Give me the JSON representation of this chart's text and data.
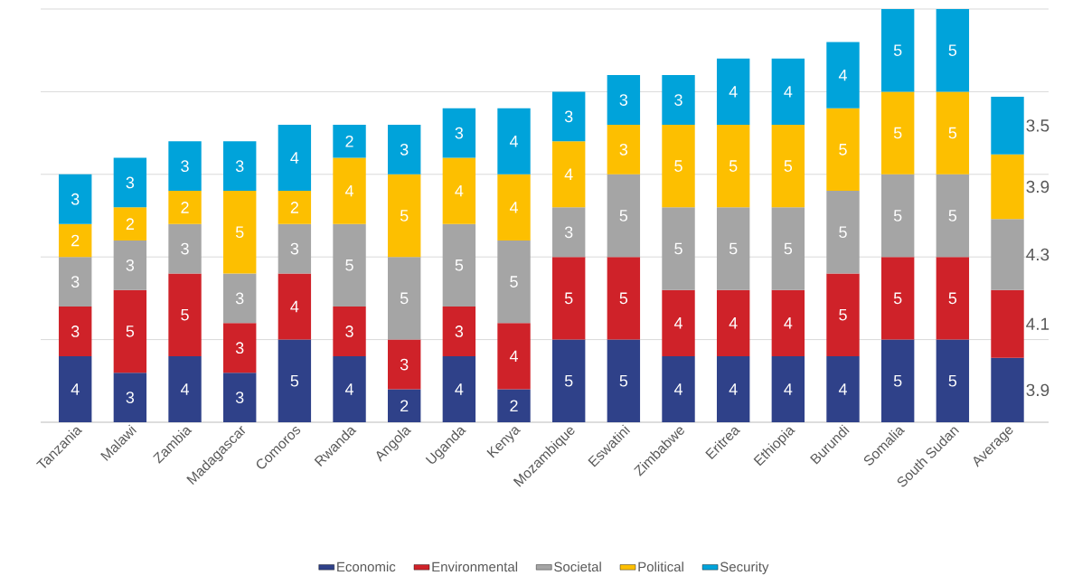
{
  "chart_data": {
    "type": "bar",
    "stacked": true,
    "categories": [
      "Tanzania",
      "Malawi",
      "Zambia",
      "Madagascar",
      "Comoros",
      "Rwanda",
      "Angola",
      "Uganda",
      "Kenya",
      "Mozambique",
      "Eswatini",
      "Zimbabwe",
      "Eritrea",
      "Ethiopia",
      "Burundi",
      "Somalia",
      "South Sudan",
      "Average"
    ],
    "series": [
      {
        "name": "Economic",
        "color": "#2f4189",
        "values": [
          4,
          3,
          4,
          3,
          5,
          4,
          2,
          4,
          2,
          5,
          5,
          4,
          4,
          4,
          4,
          5,
          5,
          3.9
        ]
      },
      {
        "name": "Environmental",
        "color": "#cf2229",
        "values": [
          3,
          5,
          5,
          3,
          4,
          3,
          3,
          3,
          4,
          5,
          5,
          4,
          4,
          4,
          5,
          5,
          5,
          4.1
        ]
      },
      {
        "name": "Societal",
        "color": "#a5a5a5",
        "values": [
          3,
          3,
          3,
          3,
          3,
          5,
          5,
          5,
          5,
          3,
          5,
          5,
          5,
          5,
          5,
          5,
          5,
          4.3
        ]
      },
      {
        "name": "Political",
        "color": "#fdbf00",
        "values": [
          2,
          2,
          2,
          5,
          2,
          4,
          5,
          4,
          4,
          4,
          3,
          5,
          5,
          5,
          5,
          5,
          5,
          3.9
        ]
      },
      {
        "name": "Security",
        "color": "#00a3da",
        "values": [
          3,
          3,
          3,
          3,
          4,
          2,
          3,
          3,
          4,
          3,
          3,
          3,
          4,
          4,
          4,
          5,
          5,
          3.5
        ]
      }
    ],
    "ylim": [
      0,
      25
    ],
    "yticks": [
      {
        "value": 0,
        "label": null
      },
      {
        "value": 5,
        "label": null
      },
      {
        "value": 10,
        "label": null
      },
      {
        "value": 15,
        "label": null
      },
      {
        "value": 20,
        "label": null
      },
      {
        "value": 25,
        "label": null
      }
    ],
    "tick_labels": "x",
    "grid": "y",
    "data_labels": true,
    "legend": "bottom"
  }
}
